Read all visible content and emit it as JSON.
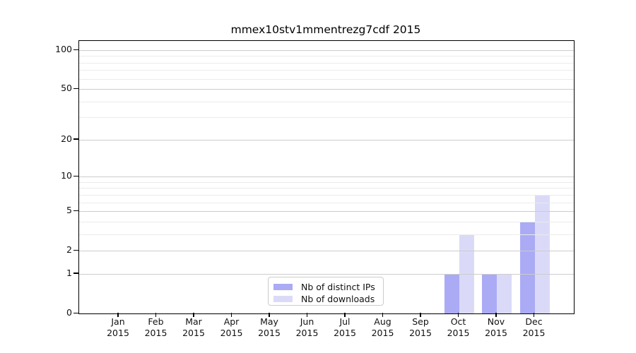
{
  "title": "mmex10stv1mmentrezg7cdf 2015",
  "legend": {
    "items": [
      {
        "label": "Nb of distinct IPs",
        "color": "#aaaaf5"
      },
      {
        "label": "Nb of downloads",
        "color": "#dadaf8"
      }
    ],
    "position": "lower center"
  },
  "chart_data": {
    "type": "bar",
    "title": "mmex10stv1mmentrezg7cdf 2015",
    "categories": [
      "Jan 2015",
      "Feb 2015",
      "Mar 2015",
      "Apr 2015",
      "May 2015",
      "Jun 2015",
      "Jul 2015",
      "Aug 2015",
      "Sep 2015",
      "Oct 2015",
      "Nov 2015",
      "Dec 2015"
    ],
    "x_tick_months": [
      "Jan",
      "Feb",
      "Mar",
      "Apr",
      "May",
      "Jun",
      "Jul",
      "Aug",
      "Sep",
      "Oct",
      "Nov",
      "Dec"
    ],
    "x_tick_year": "2015",
    "series": [
      {
        "name": "Nb of distinct IPs",
        "color": "#aaaaf5",
        "values": [
          0,
          0,
          0,
          0,
          0,
          0,
          0,
          0,
          0,
          1,
          1,
          4
        ]
      },
      {
        "name": "Nb of downloads",
        "color": "#dadaf8",
        "values": [
          0,
          0,
          0,
          0,
          0,
          0,
          0,
          0,
          0,
          3,
          1,
          7
        ]
      }
    ],
    "yscale": "log1p",
    "ylim": [
      0,
      117
    ],
    "y_major_ticks": [
      0,
      1,
      2,
      5,
      10,
      20,
      50,
      100
    ],
    "y_minor_ticks": [
      3,
      4,
      6,
      7,
      8,
      9,
      30,
      40,
      60,
      70,
      80,
      90
    ],
    "grid": "on",
    "grid_above_bars": true,
    "colors": {
      "major_grid": "#cccccc",
      "minor_grid": "#ebebeb",
      "spine": "#000000",
      "background": "#ffffff"
    }
  }
}
